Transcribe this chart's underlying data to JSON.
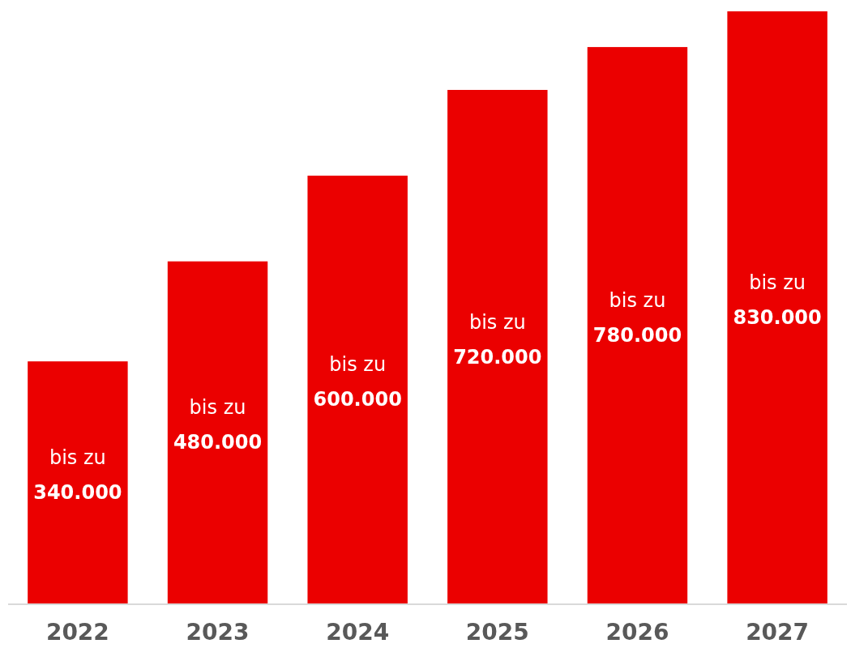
{
  "chart_data": {
    "type": "bar",
    "categories": [
      "2022",
      "2023",
      "2024",
      "2025",
      "2026",
      "2027"
    ],
    "values": [
      340000,
      480000,
      600000,
      720000,
      780000,
      830000
    ],
    "value_labels": [
      "bis zu 340.000",
      "bis zu 480.000",
      "bis zu 600.000",
      "bis zu 720.000",
      "bis zu 780.000",
      "bis zu 830.000"
    ],
    "color": "#eb0000",
    "ylim": [
      0,
      830000
    ]
  }
}
